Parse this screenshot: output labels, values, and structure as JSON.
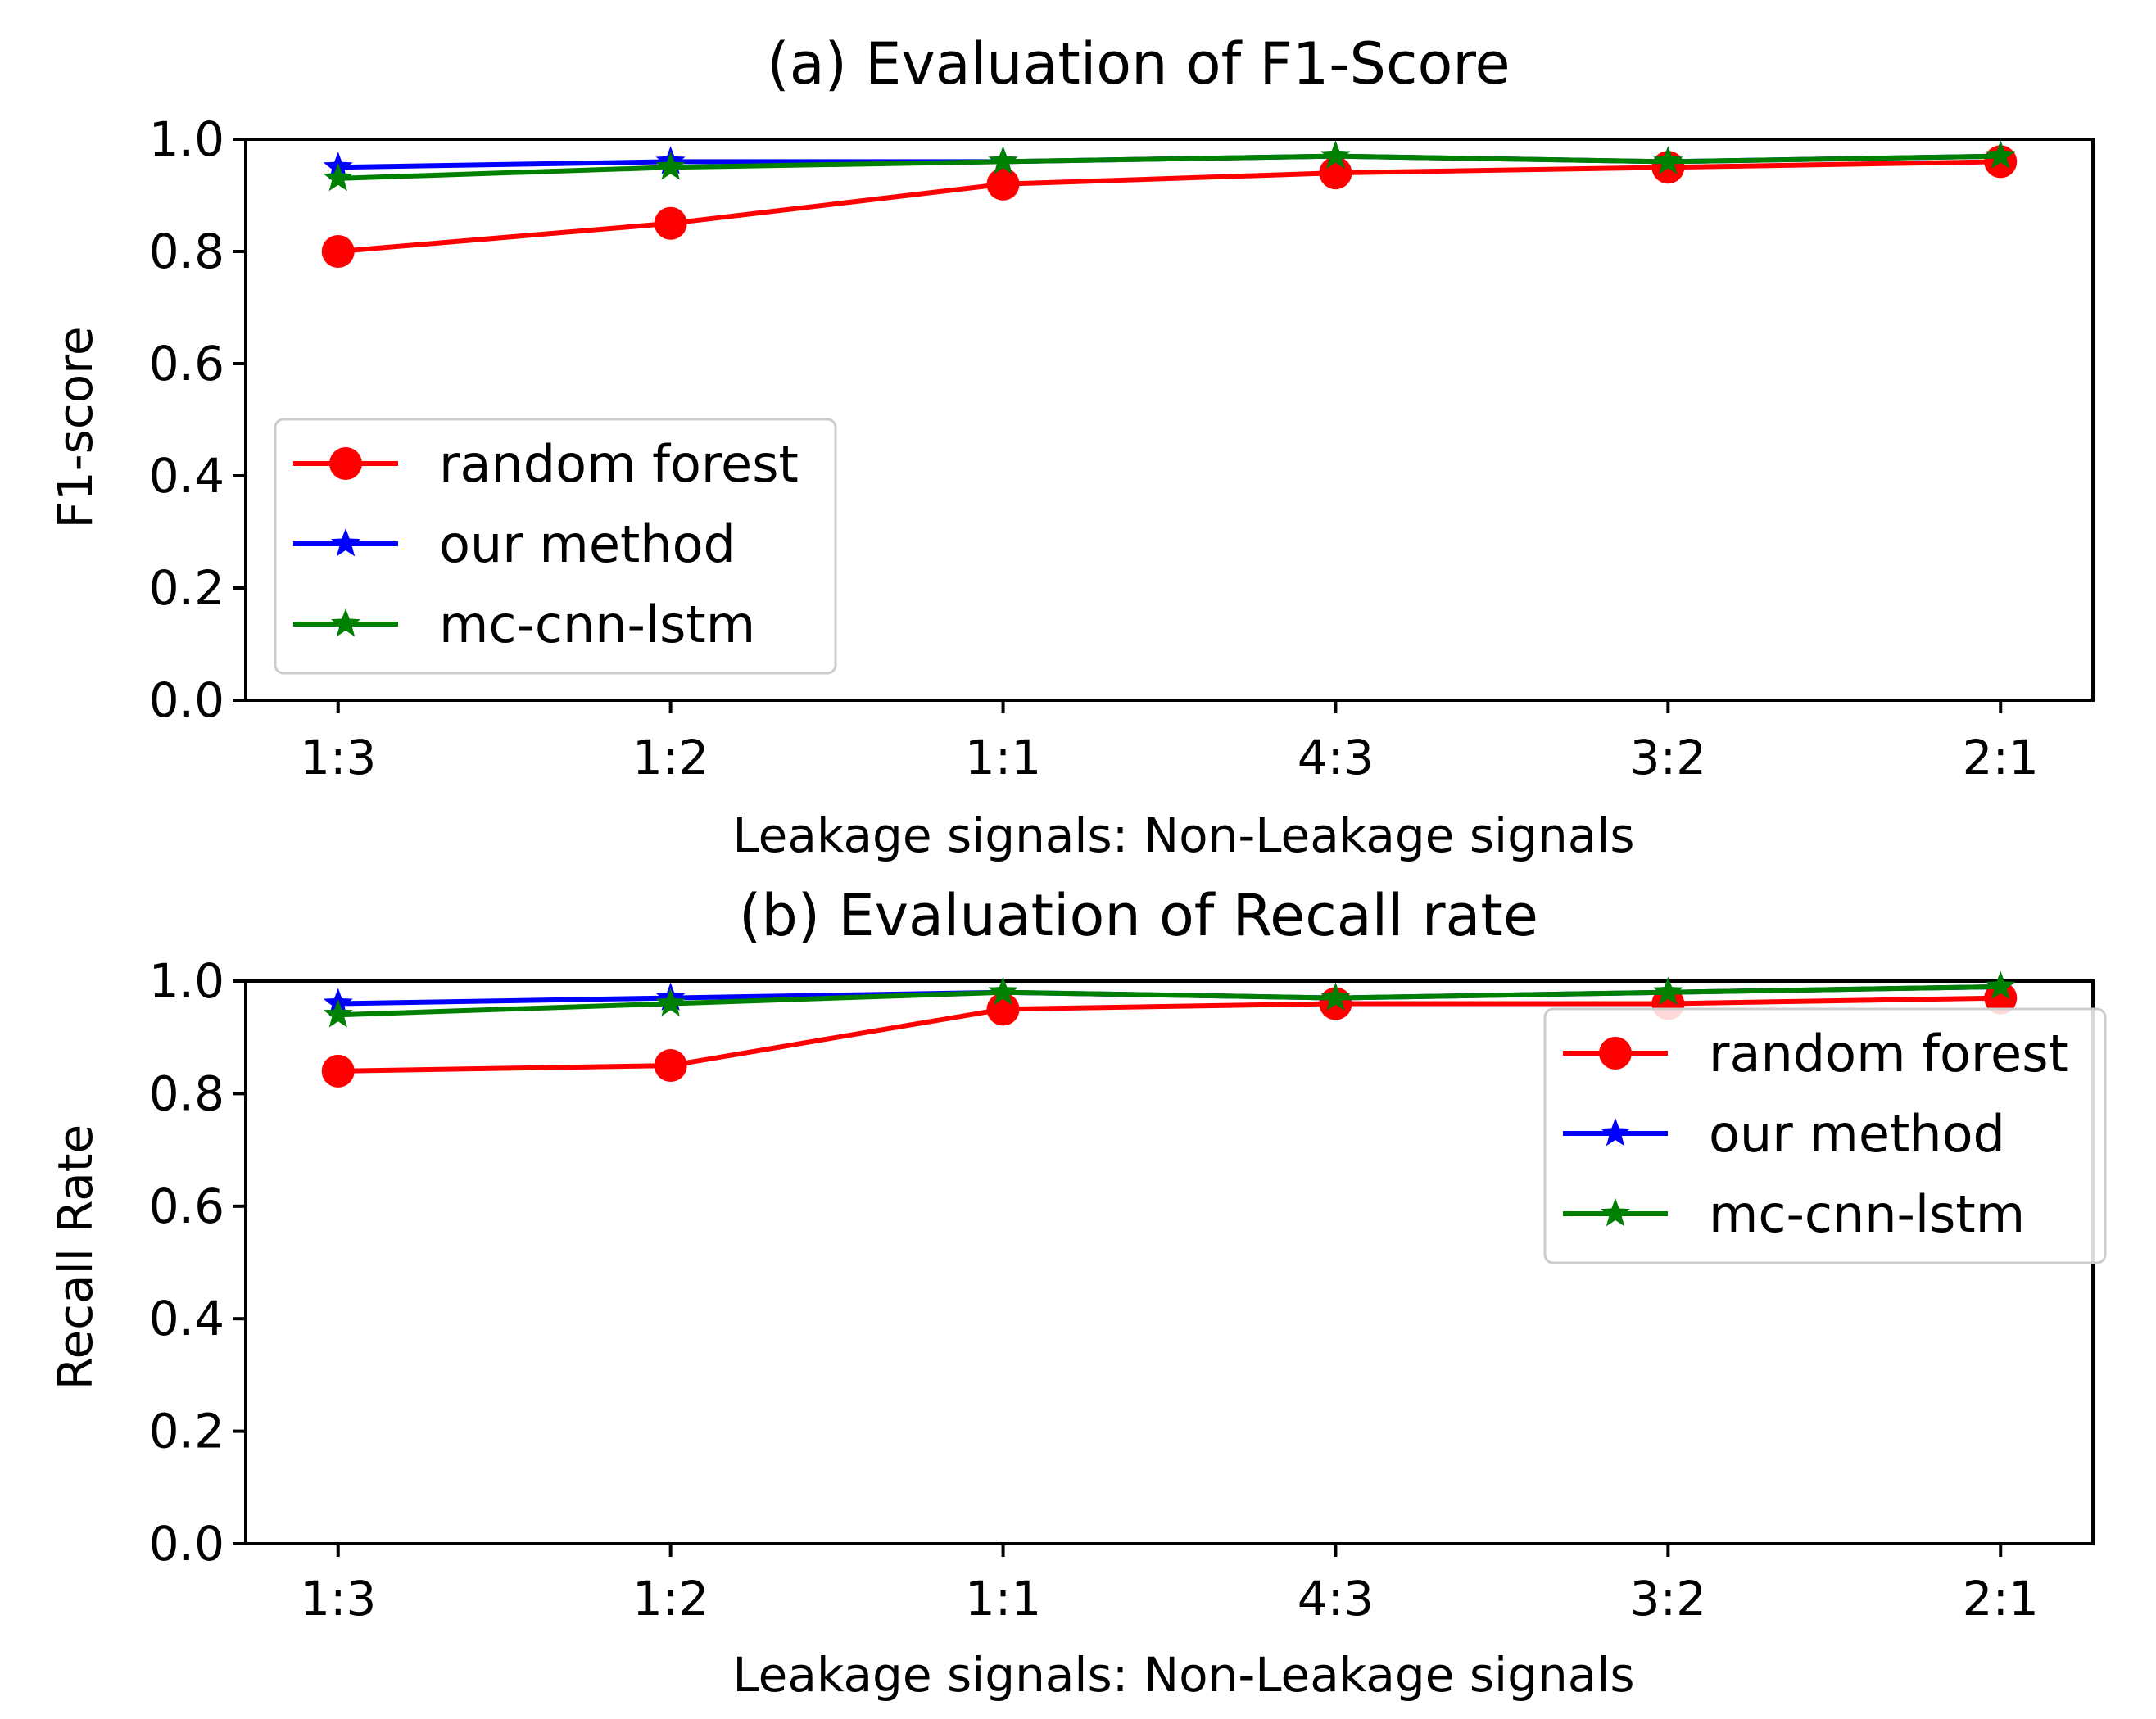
{
  "chart_data": [
    {
      "type": "line",
      "title": "(a) Evaluation of F1-Score",
      "xlabel": "Leakage signals: Non-Leakage signals",
      "ylabel": "F1-score",
      "categories": [
        "1:3",
        "1:2",
        "1:1",
        "4:3",
        "3:2",
        "2:1"
      ],
      "ylim": [
        0,
        1.0
      ],
      "yticks": [
        "0.0",
        "0.2",
        "0.4",
        "0.6",
        "0.8",
        "1.0"
      ],
      "legend_position": "center-left",
      "series": [
        {
          "name": "random forest",
          "color": "#ff0000",
          "marker": "circle",
          "values": [
            0.8,
            0.85,
            0.92,
            0.94,
            0.95,
            0.96
          ]
        },
        {
          "name": "our method",
          "color": "#0000ff",
          "marker": "star",
          "values": [
            0.95,
            0.96,
            0.96,
            0.97,
            0.96,
            0.97
          ]
        },
        {
          "name": "mc-cnn-lstm",
          "color": "#008000",
          "marker": "star",
          "values": [
            0.93,
            0.95,
            0.96,
            0.97,
            0.96,
            0.97
          ]
        }
      ]
    },
    {
      "type": "line",
      "title": "(b) Evaluation of Recall rate",
      "xlabel": "Leakage signals: Non-Leakage signals",
      "ylabel": "Recall Rate",
      "categories": [
        "1:3",
        "1:2",
        "1:1",
        "4:3",
        "3:2",
        "2:1"
      ],
      "ylim": [
        0,
        1.0
      ],
      "yticks": [
        "0.0",
        "0.2",
        "0.4",
        "0.6",
        "0.8",
        "1.0"
      ],
      "legend_position": "top-right",
      "series": [
        {
          "name": "random forest",
          "color": "#ff0000",
          "marker": "circle",
          "values": [
            0.84,
            0.85,
            0.95,
            0.96,
            0.96,
            0.97
          ]
        },
        {
          "name": "our method",
          "color": "#0000ff",
          "marker": "star",
          "values": [
            0.96,
            0.97,
            0.98,
            0.97,
            0.98,
            0.99
          ]
        },
        {
          "name": "mc-cnn-lstm",
          "color": "#008000",
          "marker": "star",
          "values": [
            0.94,
            0.96,
            0.98,
            0.97,
            0.98,
            0.99
          ]
        }
      ]
    }
  ]
}
